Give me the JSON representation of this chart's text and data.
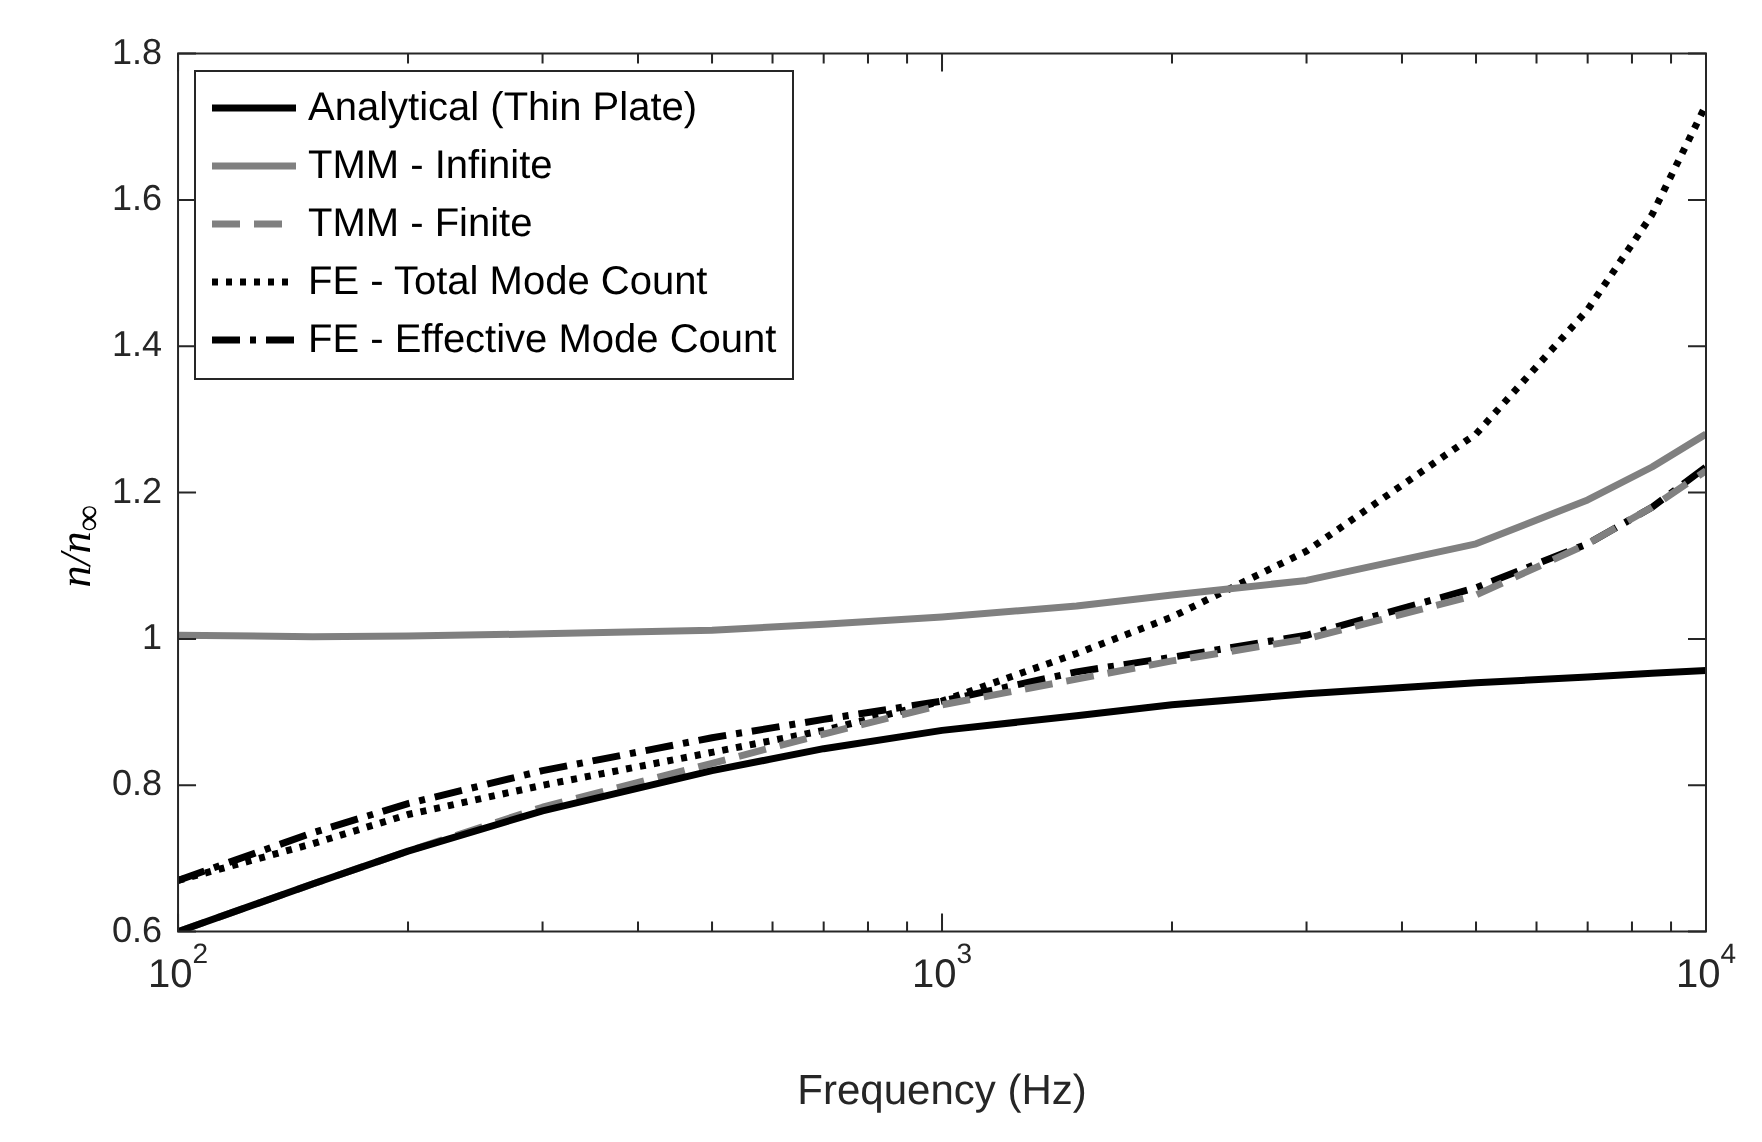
{
  "chart_data": {
    "type": "line",
    "xlabel": "Frequency (Hz)",
    "ylabel": "n/n$_{∞}$",
    "log": "x",
    "xlim": [
      100,
      10000
    ],
    "ylim": [
      0.6,
      1.8
    ],
    "xticks": [
      {
        "value": 100,
        "label": "10$^{2}$"
      },
      {
        "value": 200,
        "label": null
      },
      {
        "value": 300,
        "label": null
      },
      {
        "value": 400,
        "label": null
      },
      {
        "value": 500,
        "label": null
      },
      {
        "value": 600,
        "label": null
      },
      {
        "value": 700,
        "label": null
      },
      {
        "value": 800,
        "label": null
      },
      {
        "value": 900,
        "label": null
      },
      {
        "value": 1000,
        "label": "10$^{3}$"
      },
      {
        "value": 2000,
        "label": null
      },
      {
        "value": 3000,
        "label": null
      },
      {
        "value": 4000,
        "label": null
      },
      {
        "value": 5000,
        "label": null
      },
      {
        "value": 6000,
        "label": null
      },
      {
        "value": 7000,
        "label": null
      },
      {
        "value": 8000,
        "label": null
      },
      {
        "value": 9000,
        "label": null
      },
      {
        "value": 10000,
        "label": "10$^{4}$"
      }
    ],
    "yticks": [
      0.6,
      0.8,
      1,
      1.2,
      1.4,
      1.6,
      1.8
    ],
    "grid": false,
    "legend": "top left",
    "marker": "none",
    "x": [
      100,
      150,
      200,
      300,
      500,
      700,
      1000,
      1500,
      2000,
      3000,
      5000,
      7000,
      8500,
      10000
    ],
    "series": [
      {
        "name": "Analytical (Thin Plate)",
        "color": "#000000",
        "line_style": "solid",
        "values": [
          0.6,
          0.665,
          0.71,
          0.765,
          0.82,
          0.85,
          0.875,
          0.895,
          0.91,
          0.925,
          0.94,
          0.948,
          0.953,
          0.957
        ]
      },
      {
        "name": "TMM - Infinite",
        "color": "#808080",
        "line_style": "solid",
        "values": [
          1.005,
          1.003,
          1.004,
          1.007,
          1.012,
          1.02,
          1.03,
          1.045,
          1.06,
          1.08,
          1.13,
          1.19,
          1.235,
          1.28
        ]
      },
      {
        "name": "TMM - Finite",
        "color": "#808080",
        "line_style": "dashed",
        "values": [
          0.6,
          0.665,
          0.71,
          0.77,
          0.83,
          0.87,
          0.91,
          0.945,
          0.97,
          1.0,
          1.06,
          1.13,
          1.18,
          1.23
        ]
      },
      {
        "name": "FE - Total Mode Count",
        "color": "#000000",
        "line_style": "dotted",
        "values": [
          0.67,
          0.72,
          0.76,
          0.8,
          0.845,
          0.875,
          0.915,
          0.98,
          1.03,
          1.12,
          1.28,
          1.45,
          1.58,
          1.73
        ]
      },
      {
        "name": "FE - Effective Mode Count",
        "color": "#000000",
        "line_style": "dashdot",
        "values": [
          0.67,
          0.735,
          0.775,
          0.82,
          0.865,
          0.89,
          0.915,
          0.955,
          0.975,
          1.005,
          1.07,
          1.13,
          1.18,
          1.235
        ]
      }
    ]
  }
}
